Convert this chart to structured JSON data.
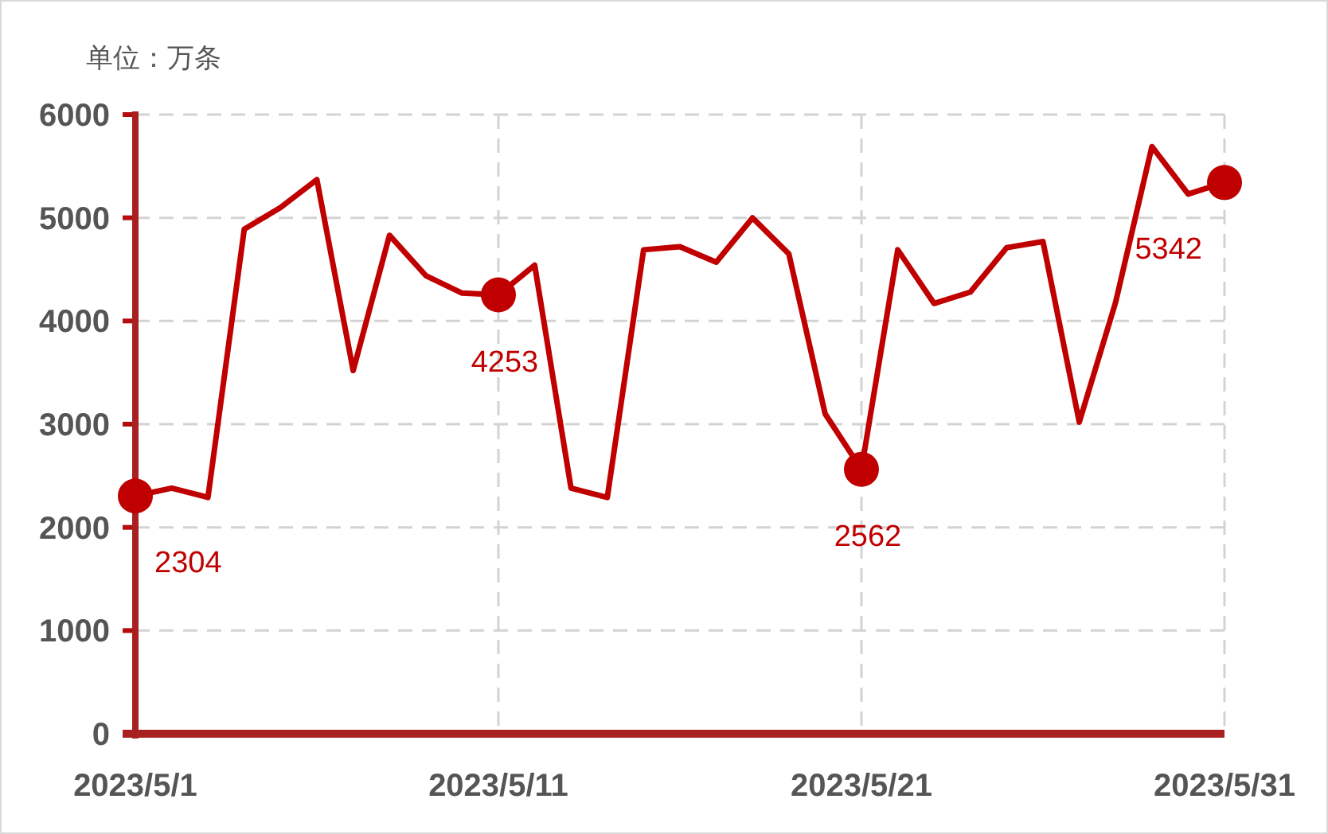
{
  "chart_data": {
    "type": "line",
    "title": "单位：万条",
    "categories": [
      "2023/5/1",
      null,
      null,
      null,
      null,
      null,
      null,
      null,
      null,
      null,
      "2023/5/11",
      null,
      null,
      null,
      null,
      null,
      null,
      null,
      null,
      null,
      "2023/5/21",
      null,
      null,
      null,
      null,
      null,
      null,
      null,
      null,
      null,
      "2023/5/31"
    ],
    "series": [
      {
        "color": "#c00000",
        "values": [
          2304,
          2380,
          2290,
          4890,
          5100,
          5370,
          3520,
          4830,
          4440,
          4270,
          4253,
          4540,
          2380,
          2290,
          4690,
          4720,
          4570,
          5000,
          4650,
          3100,
          2562,
          4690,
          4170,
          4280,
          4710,
          4770,
          3020,
          4180,
          5690,
          5230,
          5342
        ]
      },
      {
        "type": "scatter",
        "color": "#c00000",
        "marker": "circle",
        "values": [
          2304,
          null,
          null,
          null,
          null,
          null,
          null,
          null,
          null,
          null,
          4253,
          null,
          null,
          null,
          null,
          null,
          null,
          null,
          null,
          null,
          2562,
          null,
          null,
          null,
          null,
          null,
          null,
          null,
          null,
          null,
          5342
        ],
        "value_labels": [
          "2304",
          null,
          null,
          null,
          null,
          null,
          null,
          null,
          null,
          null,
          "4253",
          null,
          null,
          null,
          null,
          null,
          null,
          null,
          null,
          null,
          "2562",
          null,
          null,
          null,
          null,
          null,
          null,
          null,
          null,
          null,
          "5342"
        ]
      }
    ],
    "ylim": [
      0,
      6000
    ],
    "yticks": [
      0,
      1000,
      2000,
      3000,
      4000,
      5000,
      6000
    ],
    "grid": true,
    "line_style": "solid"
  }
}
